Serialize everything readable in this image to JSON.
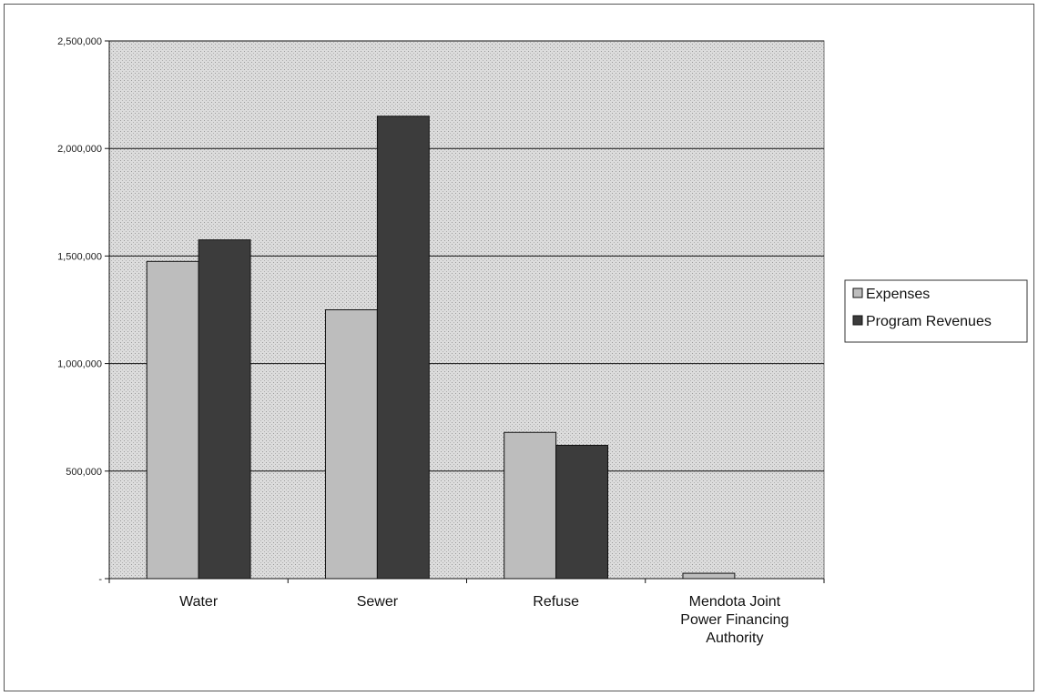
{
  "chart_data": {
    "type": "bar",
    "categories": [
      "Water",
      "Sewer",
      "Refuse",
      "Mendota Joint Power Financing Authority"
    ],
    "series": [
      {
        "name": "Expenses",
        "values": [
          1475000,
          1250000,
          680000,
          25000
        ],
        "color": "#bdbdbd"
      },
      {
        "name": "Program Revenues",
        "values": [
          1575000,
          2150000,
          620000,
          0
        ],
        "color": "#3c3c3c"
      }
    ],
    "title": "",
    "xlabel": "",
    "ylabel": "",
    "ylim": [
      0,
      2500000
    ],
    "yticks": [
      0,
      500000,
      1000000,
      1500000,
      2000000,
      2500000
    ],
    "ytick_labels": [
      "-",
      "500,000",
      "1,000,000",
      "1,500,000",
      "2,000,000",
      "2,500,000"
    ],
    "grid": true,
    "legend_position": "right",
    "plot_background": "#d9d9d9"
  }
}
